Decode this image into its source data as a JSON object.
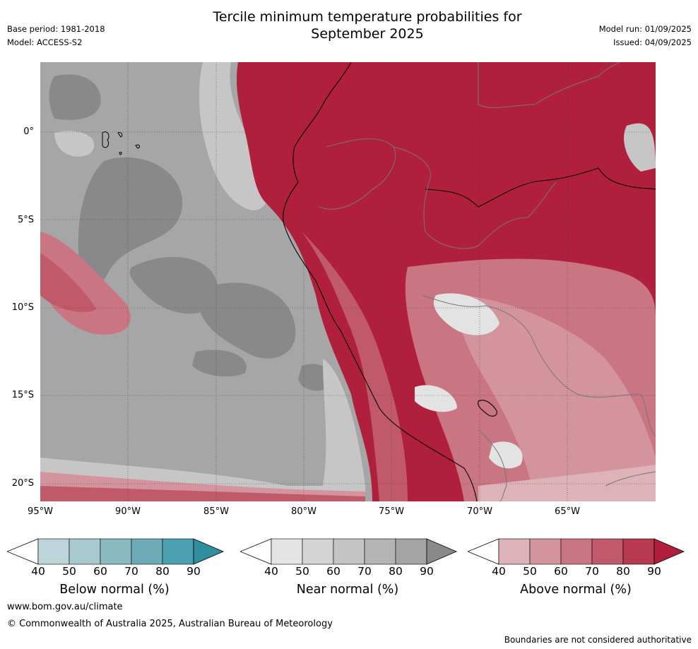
{
  "header": {
    "title_line1": "Tercile minimum temperature probabilities for",
    "title_line2": "September 2025",
    "base_period": "Base period: 1981-2018",
    "model": "Model: ACCESS-S2",
    "model_run": "Model run: 01/09/2025",
    "issued": "Issued: 04/09/2025"
  },
  "map": {
    "lat_labels": [
      "0°",
      "5°S",
      "10°S",
      "15°S",
      "20°S"
    ],
    "lon_labels": [
      "95°W",
      "90°W",
      "85°W",
      "80°W",
      "75°W",
      "70°W",
      "65°W"
    ],
    "colors": {
      "near_light": "#e3e3e3",
      "near_mid": "#c6c6c6",
      "near_dark": "#a6a6a6",
      "near_darkest": "#898989",
      "above_40": "#ddb3b9",
      "above_50": "#d4949e",
      "above_60": "#ca7582",
      "above_70": "#c0596a",
      "above_80": "#b73a50",
      "above_90": "#b01f3c"
    }
  },
  "colorbars": {
    "below": {
      "title": "Below normal (%)",
      "ticks": [
        "40",
        "50",
        "60",
        "70",
        "80",
        "90"
      ],
      "colors": [
        "#bdd5da",
        "#a7c9cf",
        "#8bb9c2",
        "#6dabb7",
        "#4ba0af",
        "#2f8f9f"
      ]
    },
    "near": {
      "title": "Near normal (%)",
      "ticks": [
        "40",
        "50",
        "60",
        "70",
        "80",
        "90"
      ],
      "colors": [
        "#e4e4e4",
        "#d4d4d4",
        "#c4c4c4",
        "#b4b4b4",
        "#a4a4a4",
        "#898989"
      ]
    },
    "above": {
      "title": "Above normal (%)",
      "ticks": [
        "40",
        "50",
        "60",
        "70",
        "80",
        "90"
      ],
      "colors": [
        "#ddb3b9",
        "#d4949e",
        "#ca7582",
        "#c0596a",
        "#b73a50",
        "#b01f3c"
      ]
    }
  },
  "footer": {
    "website": "www.bom.gov.au/climate",
    "copyright": "© Commonwealth of Australia 2025, Australian Bureau of Meteorology",
    "disclaimer": "Boundaries are not considered authoritative"
  }
}
